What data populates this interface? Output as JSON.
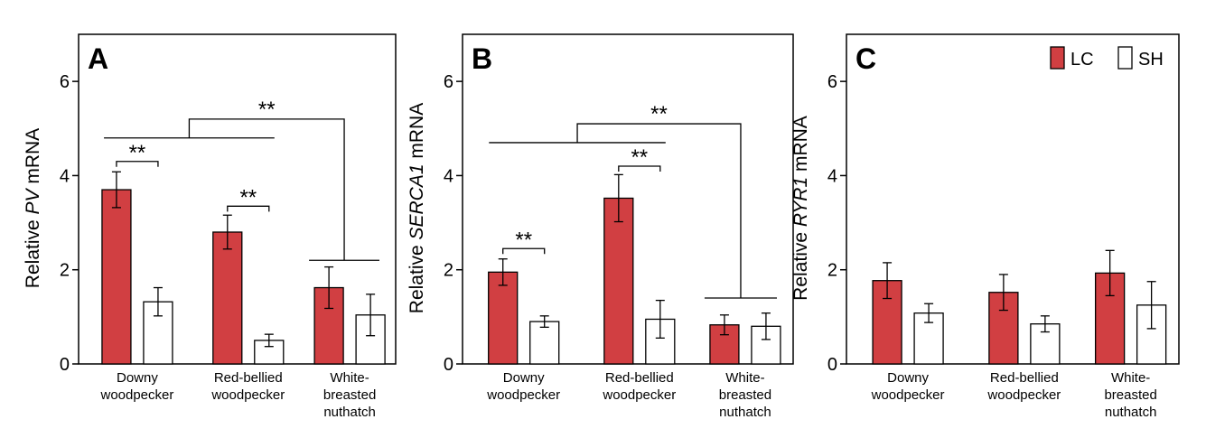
{
  "colors": {
    "LC": "#d13f42",
    "SH": "#ffffff",
    "stroke": "#000000"
  },
  "legend": [
    {
      "key": "LC",
      "label": "LC"
    },
    {
      "key": "SH",
      "label": "SH"
    }
  ],
  "chart_data": [
    {
      "type": "bar",
      "panel": "A",
      "ylabel_prefix": "Relative ",
      "ylabel_gene": "PV",
      "ylabel_suffix": " mRNA",
      "ylim": [
        0,
        7
      ],
      "yticks": [
        0,
        2,
        4,
        6
      ],
      "categories": [
        [
          "Downy",
          "woodpecker"
        ],
        [
          "Red-bellied",
          "woodpecker"
        ],
        [
          "White-",
          "breasted",
          "nuthatch"
        ]
      ],
      "series": [
        {
          "name": "LC",
          "values": [
            3.7,
            2.8,
            1.62
          ],
          "errors": [
            0.38,
            0.36,
            0.44
          ]
        },
        {
          "name": "SH",
          "values": [
            1.32,
            0.5,
            1.04
          ],
          "errors": [
            0.3,
            0.13,
            0.44
          ]
        }
      ],
      "significance": [
        {
          "type": "pair",
          "group": 0,
          "y": 4.3,
          "label": "**"
        },
        {
          "type": "pair",
          "group": 1,
          "y": 3.35,
          "label": "**"
        },
        {
          "type": "groups",
          "left": [
            0,
            1
          ],
          "right": [
            2
          ],
          "lefty": 4.8,
          "righty": 2.2,
          "topy": 5.2,
          "label": "**"
        }
      ],
      "show_legend": false
    },
    {
      "type": "bar",
      "panel": "B",
      "ylabel_prefix": "Relative ",
      "ylabel_gene": "SERCA1",
      "ylabel_suffix": " mRNA",
      "ylim": [
        0,
        7
      ],
      "yticks": [
        0,
        2,
        4,
        6
      ],
      "categories": [
        [
          "Downy",
          "woodpecker"
        ],
        [
          "Red-bellied",
          "woodpecker"
        ],
        [
          "White-",
          "breasted",
          "nuthatch"
        ]
      ],
      "series": [
        {
          "name": "LC",
          "values": [
            1.95,
            3.52,
            0.83
          ],
          "errors": [
            0.28,
            0.5,
            0.21
          ]
        },
        {
          "name": "SH",
          "values": [
            0.9,
            0.95,
            0.8
          ],
          "errors": [
            0.12,
            0.4,
            0.28
          ]
        }
      ],
      "significance": [
        {
          "type": "pair",
          "group": 0,
          "y": 2.45,
          "label": "**"
        },
        {
          "type": "pair",
          "group": 1,
          "y": 4.2,
          "label": "**"
        },
        {
          "type": "groups",
          "left": [
            0,
            1
          ],
          "right": [
            2
          ],
          "lefty": 4.7,
          "righty": 1.4,
          "topy": 5.1,
          "label": "**"
        }
      ],
      "show_legend": false
    },
    {
      "type": "bar",
      "panel": "C",
      "ylabel_prefix": "Relative ",
      "ylabel_gene": "RYR1",
      "ylabel_suffix": " mRNA",
      "ylim": [
        0,
        7
      ],
      "yticks": [
        0,
        2,
        4,
        6
      ],
      "categories": [
        [
          "Downy",
          "woodpecker"
        ],
        [
          "Red-bellied",
          "woodpecker"
        ],
        [
          "White-",
          "breasted",
          "nuthatch"
        ]
      ],
      "series": [
        {
          "name": "LC",
          "values": [
            1.77,
            1.52,
            1.93
          ],
          "errors": [
            0.38,
            0.38,
            0.48
          ]
        },
        {
          "name": "SH",
          "values": [
            1.08,
            0.85,
            1.25
          ],
          "errors": [
            0.2,
            0.17,
            0.5
          ]
        }
      ],
      "significance": [],
      "show_legend": true
    }
  ]
}
